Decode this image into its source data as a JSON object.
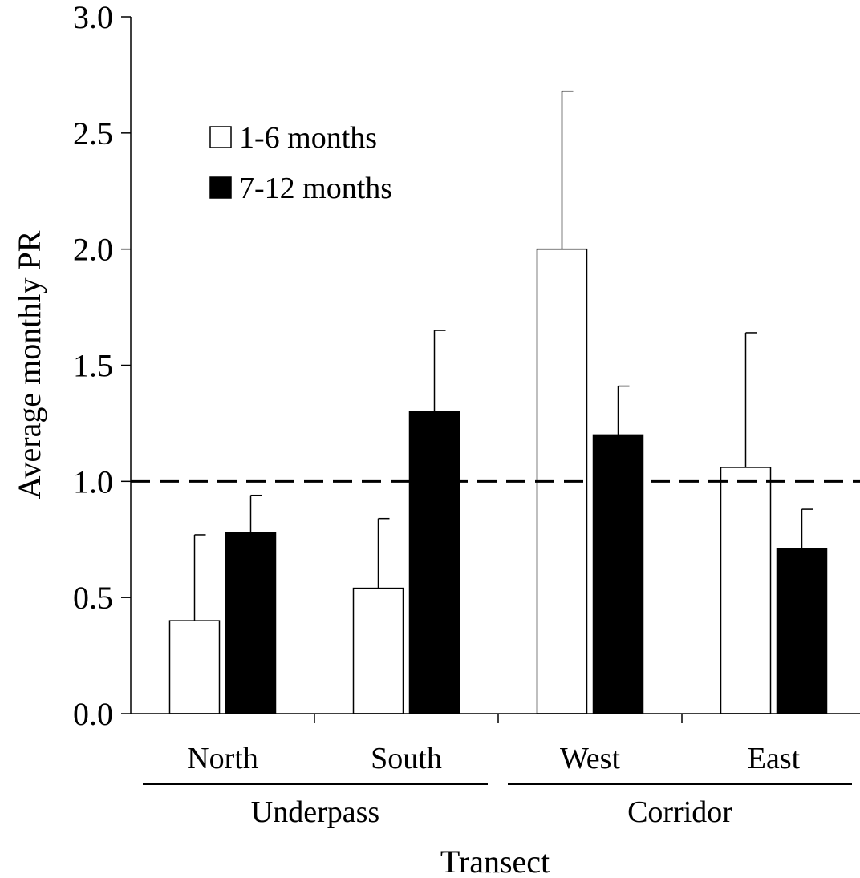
{
  "chart_data": {
    "type": "bar",
    "categories": [
      "North",
      "South",
      "West",
      "East"
    ],
    "groups": [
      {
        "label": "Underpass",
        "categories": [
          "North",
          "South"
        ]
      },
      {
        "label": "Corridor",
        "categories": [
          "West",
          "East"
        ]
      }
    ],
    "series": [
      {
        "name": "1-6 months",
        "color": "#ffffff",
        "values": [
          0.4,
          0.54,
          2.0,
          1.06
        ],
        "error": [
          0.37,
          0.3,
          0.68,
          0.58
        ]
      },
      {
        "name": "7-12 months",
        "color": "#000000",
        "values": [
          0.78,
          1.3,
          1.2,
          0.71
        ],
        "error": [
          0.16,
          0.35,
          0.21,
          0.17
        ]
      }
    ],
    "title": "",
    "xlabel": "Transect",
    "ylabel": "Average monthly PR",
    "ylim": [
      0,
      3.0
    ],
    "yticks": [
      "0.0",
      "0.5",
      "1.0",
      "1.5",
      "2.0",
      "2.5",
      "3.0"
    ],
    "reference_line": {
      "y": 1.0,
      "style": "dashed"
    },
    "legend": {
      "position": "top-left"
    },
    "grid": false
  }
}
